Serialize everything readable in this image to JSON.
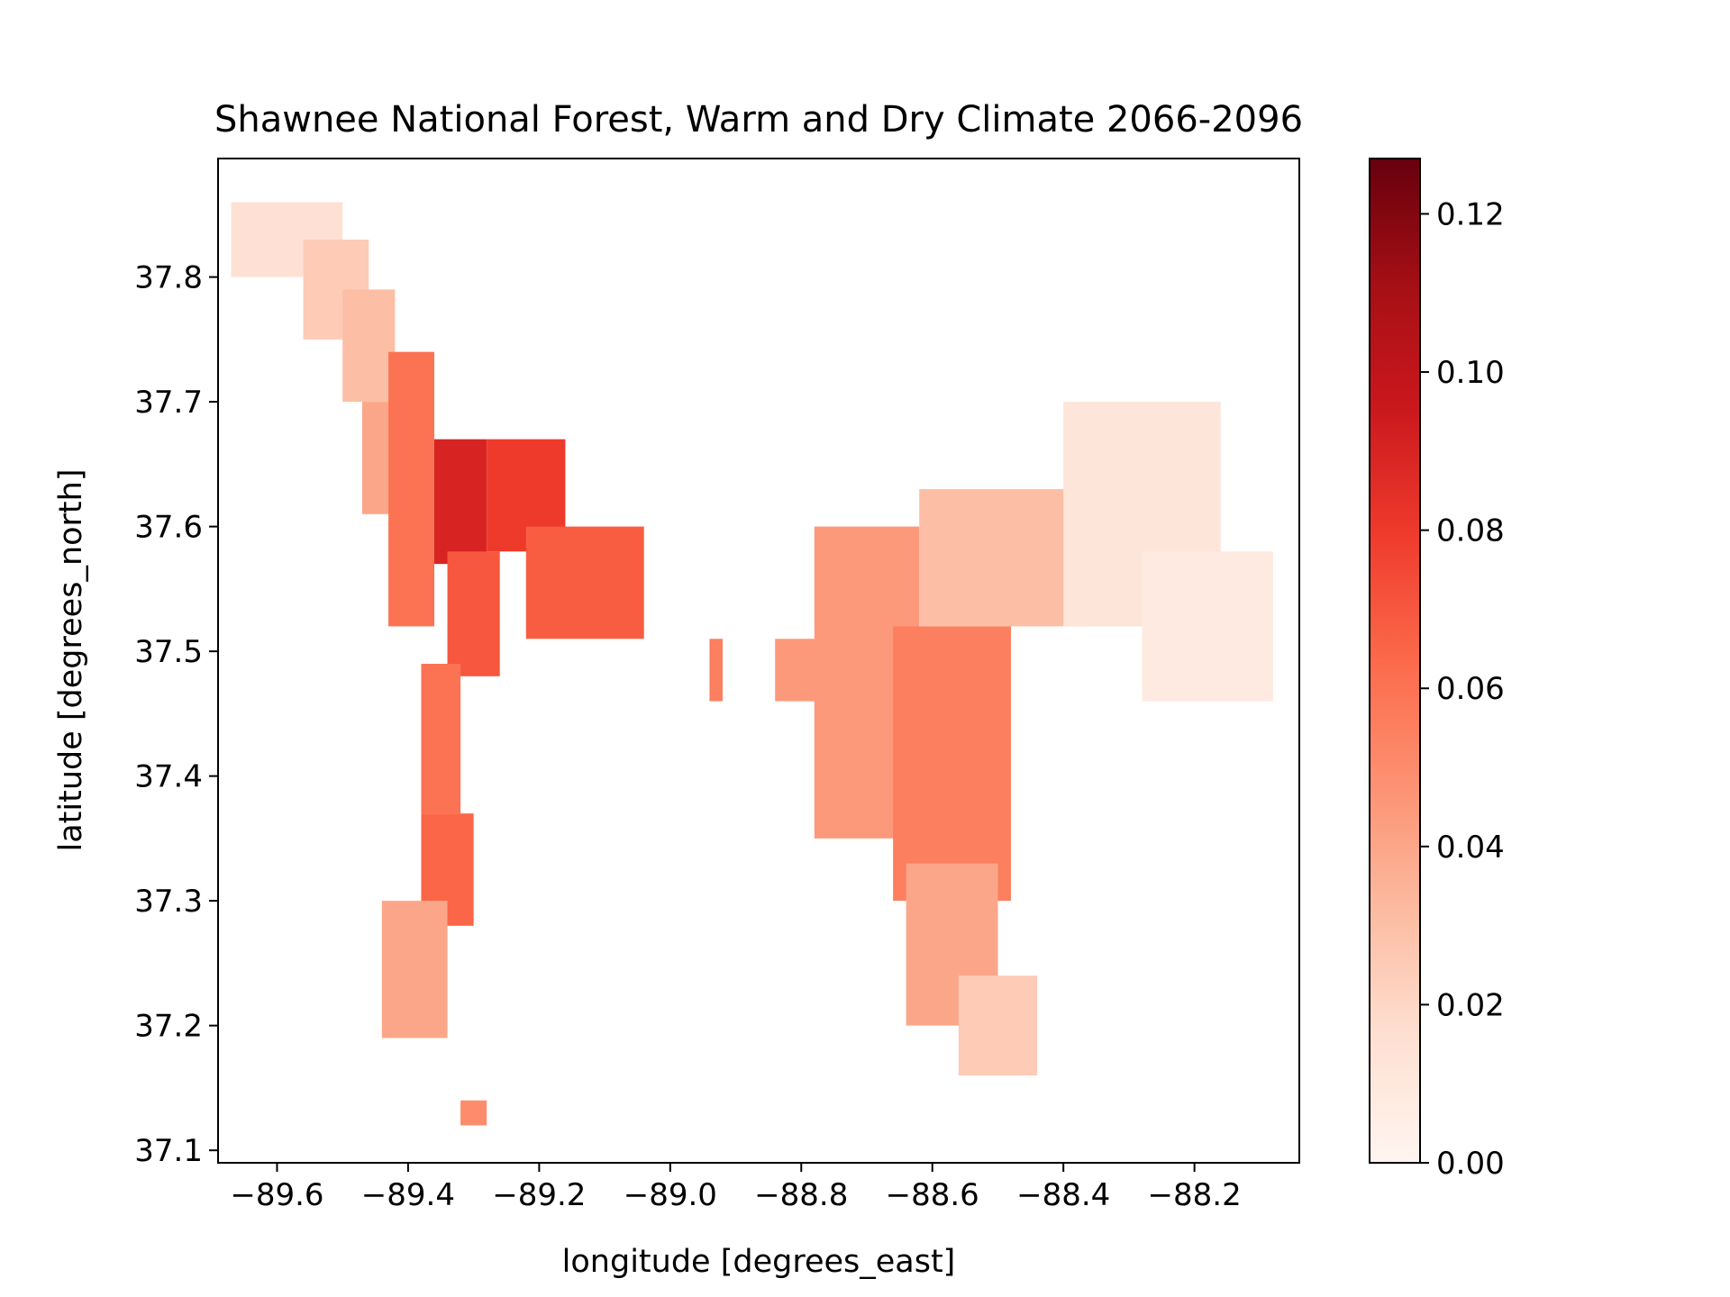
{
  "chart_data": {
    "type": "heatmap",
    "title": "Shawnee National Forest, Warm and Dry Climate 2066-2096",
    "xlabel": "longitude [degrees_east]",
    "ylabel": "latitude [degrees_north]",
    "xlim": [
      -89.69,
      -88.04
    ],
    "ylim": [
      37.09,
      37.895
    ],
    "xticks": [
      {
        "value": -89.6,
        "label": "−89.6"
      },
      {
        "value": -89.4,
        "label": "−89.4"
      },
      {
        "value": -89.2,
        "label": "−89.2"
      },
      {
        "value": -89.0,
        "label": "−89.0"
      },
      {
        "value": -88.8,
        "label": "−88.8"
      },
      {
        "value": -88.6,
        "label": "−88.6"
      },
      {
        "value": -88.4,
        "label": "−88.4"
      },
      {
        "value": -88.2,
        "label": "−88.2"
      }
    ],
    "yticks": [
      {
        "value": 37.1,
        "label": "37.1"
      },
      {
        "value": 37.2,
        "label": "37.2"
      },
      {
        "value": 37.3,
        "label": "37.3"
      },
      {
        "value": 37.4,
        "label": "37.4"
      },
      {
        "value": 37.5,
        "label": "37.5"
      },
      {
        "value": 37.6,
        "label": "37.6"
      },
      {
        "value": 37.7,
        "label": "37.7"
      },
      {
        "value": 37.8,
        "label": "37.8"
      }
    ],
    "colorbar": {
      "colormap": "Reds",
      "range": [
        0.0,
        0.127
      ],
      "ticks": [
        {
          "value": 0.0,
          "label": "0.00"
        },
        {
          "value": 0.02,
          "label": "0.02"
        },
        {
          "value": 0.04,
          "label": "0.04"
        },
        {
          "value": 0.06,
          "label": "0.06"
        },
        {
          "value": 0.08,
          "label": "0.08"
        },
        {
          "value": 0.1,
          "label": "0.10"
        },
        {
          "value": 0.12,
          "label": "0.12"
        }
      ],
      "stops": [
        {
          "value": 0.0,
          "color": "#fff5f0"
        },
        {
          "value": 0.125,
          "color": "#fee0d2"
        },
        {
          "value": 0.25,
          "color": "#fcbba1"
        },
        {
          "value": 0.375,
          "color": "#fc9272"
        },
        {
          "value": 0.5,
          "color": "#fb6a4a"
        },
        {
          "value": 0.625,
          "color": "#ef3b2c"
        },
        {
          "value": 0.75,
          "color": "#cb181d"
        },
        {
          "value": 0.875,
          "color": "#a50f15"
        },
        {
          "value": 1.0,
          "color": "#67000d"
        }
      ]
    },
    "regions": [
      {
        "lon": [
          -89.67,
          -89.5
        ],
        "lat": [
          37.8,
          37.86
        ],
        "value": 0.015
      },
      {
        "lon": [
          -89.56,
          -89.46
        ],
        "lat": [
          37.75,
          37.83
        ],
        "value": 0.025
      },
      {
        "lon": [
          -89.5,
          -89.42
        ],
        "lat": [
          37.7,
          37.79
        ],
        "value": 0.03
      },
      {
        "lon": [
          -89.47,
          -89.41
        ],
        "lat": [
          37.61,
          37.7
        ],
        "value": 0.04
      },
      {
        "lon": [
          -89.43,
          -89.36
        ],
        "lat": [
          37.52,
          37.74
        ],
        "value": 0.06
      },
      {
        "lon": [
          -89.36,
          -89.28
        ],
        "lat": [
          37.57,
          37.67
        ],
        "value": 0.09
      },
      {
        "lon": [
          -89.28,
          -89.16
        ],
        "lat": [
          37.58,
          37.67
        ],
        "value": 0.08
      },
      {
        "lon": [
          -89.34,
          -89.26
        ],
        "lat": [
          37.48,
          37.58
        ],
        "value": 0.07
      },
      {
        "lon": [
          -89.22,
          -89.04
        ],
        "lat": [
          37.51,
          37.6
        ],
        "value": 0.068
      },
      {
        "lon": [
          -89.38,
          -89.32
        ],
        "lat": [
          37.37,
          37.49
        ],
        "value": 0.06
      },
      {
        "lon": [
          -89.38,
          -89.3
        ],
        "lat": [
          37.28,
          37.37
        ],
        "value": 0.065
      },
      {
        "lon": [
          -89.44,
          -89.34
        ],
        "lat": [
          37.19,
          37.3
        ],
        "value": 0.04
      },
      {
        "lon": [
          -89.32,
          -89.28
        ],
        "lat": [
          37.12,
          37.14
        ],
        "value": 0.05
      },
      {
        "lon": [
          -88.94,
          -88.92
        ],
        "lat": [
          37.46,
          37.51
        ],
        "value": 0.055
      },
      {
        "lon": [
          -88.84,
          -88.76
        ],
        "lat": [
          37.46,
          37.51
        ],
        "value": 0.045
      },
      {
        "lon": [
          -88.78,
          -88.62
        ],
        "lat": [
          37.35,
          37.6
        ],
        "value": 0.045
      },
      {
        "lon": [
          -88.66,
          -88.48
        ],
        "lat": [
          37.3,
          37.52
        ],
        "value": 0.055
      },
      {
        "lon": [
          -88.64,
          -88.5
        ],
        "lat": [
          37.2,
          37.33
        ],
        "value": 0.04
      },
      {
        "lon": [
          -88.56,
          -88.44
        ],
        "lat": [
          37.16,
          37.24
        ],
        "value": 0.025
      },
      {
        "lon": [
          -88.62,
          -88.36
        ],
        "lat": [
          37.52,
          37.63
        ],
        "value": 0.03
      },
      {
        "lon": [
          -88.4,
          -88.16
        ],
        "lat": [
          37.52,
          37.7
        ],
        "value": 0.012
      },
      {
        "lon": [
          -88.28,
          -88.08
        ],
        "lat": [
          37.46,
          37.58
        ],
        "value": 0.008
      }
    ]
  }
}
